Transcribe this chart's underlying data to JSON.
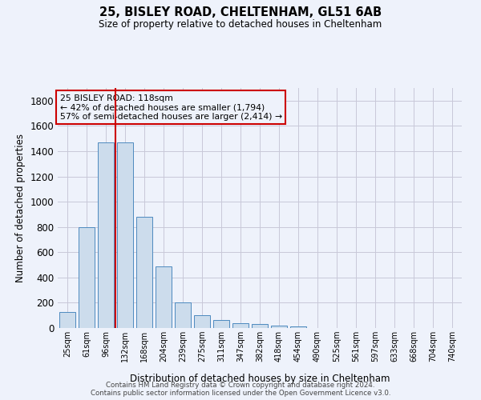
{
  "title1": "25, BISLEY ROAD, CHELTENHAM, GL51 6AB",
  "title2": "Size of property relative to detached houses in Cheltenham",
  "xlabel": "Distribution of detached houses by size in Cheltenham",
  "ylabel": "Number of detached properties",
  "footer1": "Contains HM Land Registry data © Crown copyright and database right 2024.",
  "footer2": "Contains public sector information licensed under the Open Government Licence v3.0.",
  "annotation_title": "25 BISLEY ROAD: 118sqm",
  "annotation_line1": "← 42% of detached houses are smaller (1,794)",
  "annotation_line2": "57% of semi-detached houses are larger (2,414) →",
  "bar_labels": [
    "25sqm",
    "61sqm",
    "96sqm",
    "132sqm",
    "168sqm",
    "204sqm",
    "239sqm",
    "275sqm",
    "311sqm",
    "347sqm",
    "382sqm",
    "418sqm",
    "454sqm",
    "490sqm",
    "525sqm",
    "561sqm",
    "597sqm",
    "633sqm",
    "668sqm",
    "704sqm",
    "740sqm"
  ],
  "bar_values": [
    125,
    800,
    1470,
    1470,
    880,
    490,
    205,
    103,
    65,
    40,
    32,
    20,
    12,
    3,
    2,
    2,
    2,
    1,
    1,
    1,
    2
  ],
  "bar_color": "#ccdcec",
  "bar_edge_color": "#4d8abf",
  "vline_color": "#cc0000",
  "annotation_box_color": "#cc0000",
  "ylim": [
    0,
    1900
  ],
  "yticks": [
    0,
    200,
    400,
    600,
    800,
    1000,
    1200,
    1400,
    1600,
    1800
  ],
  "grid_color": "#c8c8d8",
  "bg_color": "#eef2fb",
  "vline_x": 2.5
}
